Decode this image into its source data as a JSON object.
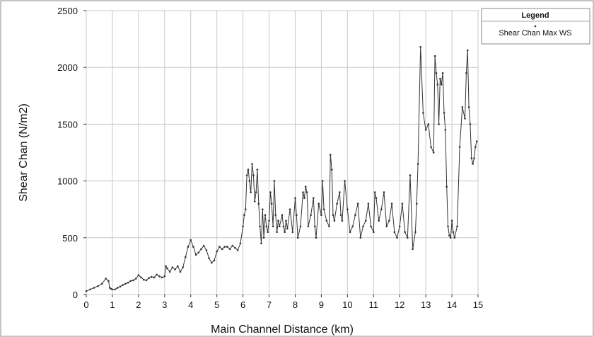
{
  "chart_data": {
    "type": "line",
    "title": "",
    "xlabel": "Main Channel Distance (km)",
    "ylabel": "Shear Chan (N/m2)",
    "xlim": [
      0,
      15
    ],
    "ylim": [
      0,
      2500
    ],
    "x_ticks": [
      "0",
      "1",
      "2",
      "3",
      "4",
      "5",
      "6",
      "7",
      "8",
      "9",
      "10",
      "11",
      "12",
      "13",
      "14",
      "15"
    ],
    "y_ticks": [
      "0",
      "500",
      "1000",
      "1500",
      "2000",
      "2500"
    ],
    "grid": true,
    "legend": {
      "title": "Legend",
      "position": "top-right"
    },
    "series": [
      {
        "name": "Shear Chan Max WS",
        "color": "#333333",
        "marker": "dot",
        "x": [
          0,
          0.15,
          0.3,
          0.45,
          0.6,
          0.75,
          0.85,
          0.9,
          0.95,
          1.0,
          1.1,
          1.2,
          1.3,
          1.4,
          1.5,
          1.6,
          1.7,
          1.8,
          1.9,
          2.0,
          2.1,
          2.2,
          2.3,
          2.4,
          2.5,
          2.6,
          2.7,
          2.8,
          2.9,
          3.0,
          3.05,
          3.1,
          3.2,
          3.3,
          3.4,
          3.5,
          3.6,
          3.7,
          3.8,
          3.9,
          4.0,
          4.1,
          4.2,
          4.3,
          4.4,
          4.5,
          4.6,
          4.7,
          4.8,
          4.9,
          5.0,
          5.1,
          5.2,
          5.3,
          5.4,
          5.5,
          5.6,
          5.7,
          5.8,
          5.9,
          6.0,
          6.05,
          6.1,
          6.15,
          6.2,
          6.25,
          6.3,
          6.35,
          6.4,
          6.45,
          6.5,
          6.55,
          6.6,
          6.65,
          6.7,
          6.75,
          6.8,
          6.85,
          6.9,
          6.95,
          7.0,
          7.05,
          7.1,
          7.15,
          7.2,
          7.25,
          7.3,
          7.35,
          7.4,
          7.5,
          7.55,
          7.6,
          7.65,
          7.7,
          7.8,
          7.9,
          8.0,
          8.05,
          8.1,
          8.2,
          8.3,
          8.35,
          8.4,
          8.45,
          8.5,
          8.6,
          8.7,
          8.75,
          8.8,
          8.9,
          9.0,
          9.05,
          9.1,
          9.2,
          9.3,
          9.35,
          9.4,
          9.45,
          9.5,
          9.6,
          9.7,
          9.75,
          9.8,
          9.9,
          10.0,
          10.1,
          10.2,
          10.3,
          10.4,
          10.5,
          10.6,
          10.7,
          10.8,
          10.9,
          11.0,
          11.05,
          11.1,
          11.2,
          11.3,
          11.4,
          11.5,
          11.6,
          11.7,
          11.8,
          11.9,
          12.0,
          12.1,
          12.2,
          12.3,
          12.4,
          12.5,
          12.6,
          12.65,
          12.7,
          12.8,
          12.9,
          13.0,
          13.1,
          13.2,
          13.3,
          13.35,
          13.4,
          13.45,
          13.5,
          13.55,
          13.6,
          13.65,
          13.7,
          13.75,
          13.8,
          13.85,
          13.9,
          13.95,
          14.0,
          14.05,
          14.1,
          14.2,
          14.3,
          14.4,
          14.5,
          14.55,
          14.6,
          14.65,
          14.7,
          14.75,
          14.8,
          14.85,
          14.9,
          14.95
        ],
        "y": [
          30,
          45,
          60,
          75,
          95,
          140,
          120,
          60,
          50,
          45,
          45,
          60,
          70,
          85,
          95,
          105,
          120,
          125,
          140,
          170,
          150,
          130,
          125,
          145,
          155,
          150,
          175,
          160,
          150,
          160,
          250,
          230,
          200,
          240,
          220,
          250,
          200,
          240,
          330,
          420,
          480,
          420,
          350,
          370,
          400,
          430,
          390,
          320,
          280,
          300,
          380,
          420,
          400,
          420,
          420,
          400,
          430,
          410,
          390,
          450,
          600,
          700,
          750,
          1050,
          1100,
          1000,
          900,
          1150,
          1050,
          820,
          900,
          1100,
          800,
          600,
          450,
          750,
          500,
          700,
          600,
          550,
          650,
          900,
          800,
          600,
          1000,
          700,
          550,
          650,
          600,
          700,
          600,
          550,
          650,
          580,
          750,
          550,
          850,
          700,
          500,
          600,
          900,
          850,
          950,
          900,
          600,
          700,
          850,
          600,
          500,
          800,
          700,
          1000,
          750,
          650,
          600,
          1230,
          1100,
          700,
          650,
          800,
          900,
          700,
          650,
          1000,
          750,
          550,
          600,
          700,
          800,
          500,
          600,
          650,
          800,
          600,
          550,
          900,
          850,
          650,
          750,
          900,
          600,
          650,
          800,
          550,
          500,
          600,
          800,
          550,
          500,
          1050,
          400,
          550,
          800,
          1150,
          2180,
          1600,
          1450,
          1500,
          1300,
          1250,
          2100,
          1950,
          1850,
          1500,
          1900,
          1850,
          1950,
          1600,
          1450,
          950,
          600,
          520,
          500,
          650,
          550,
          500,
          600,
          1300,
          1650,
          1550,
          1950,
          2150,
          1650,
          1500,
          1200,
          1150,
          1200,
          1300,
          1350
        ]
      }
    ]
  }
}
